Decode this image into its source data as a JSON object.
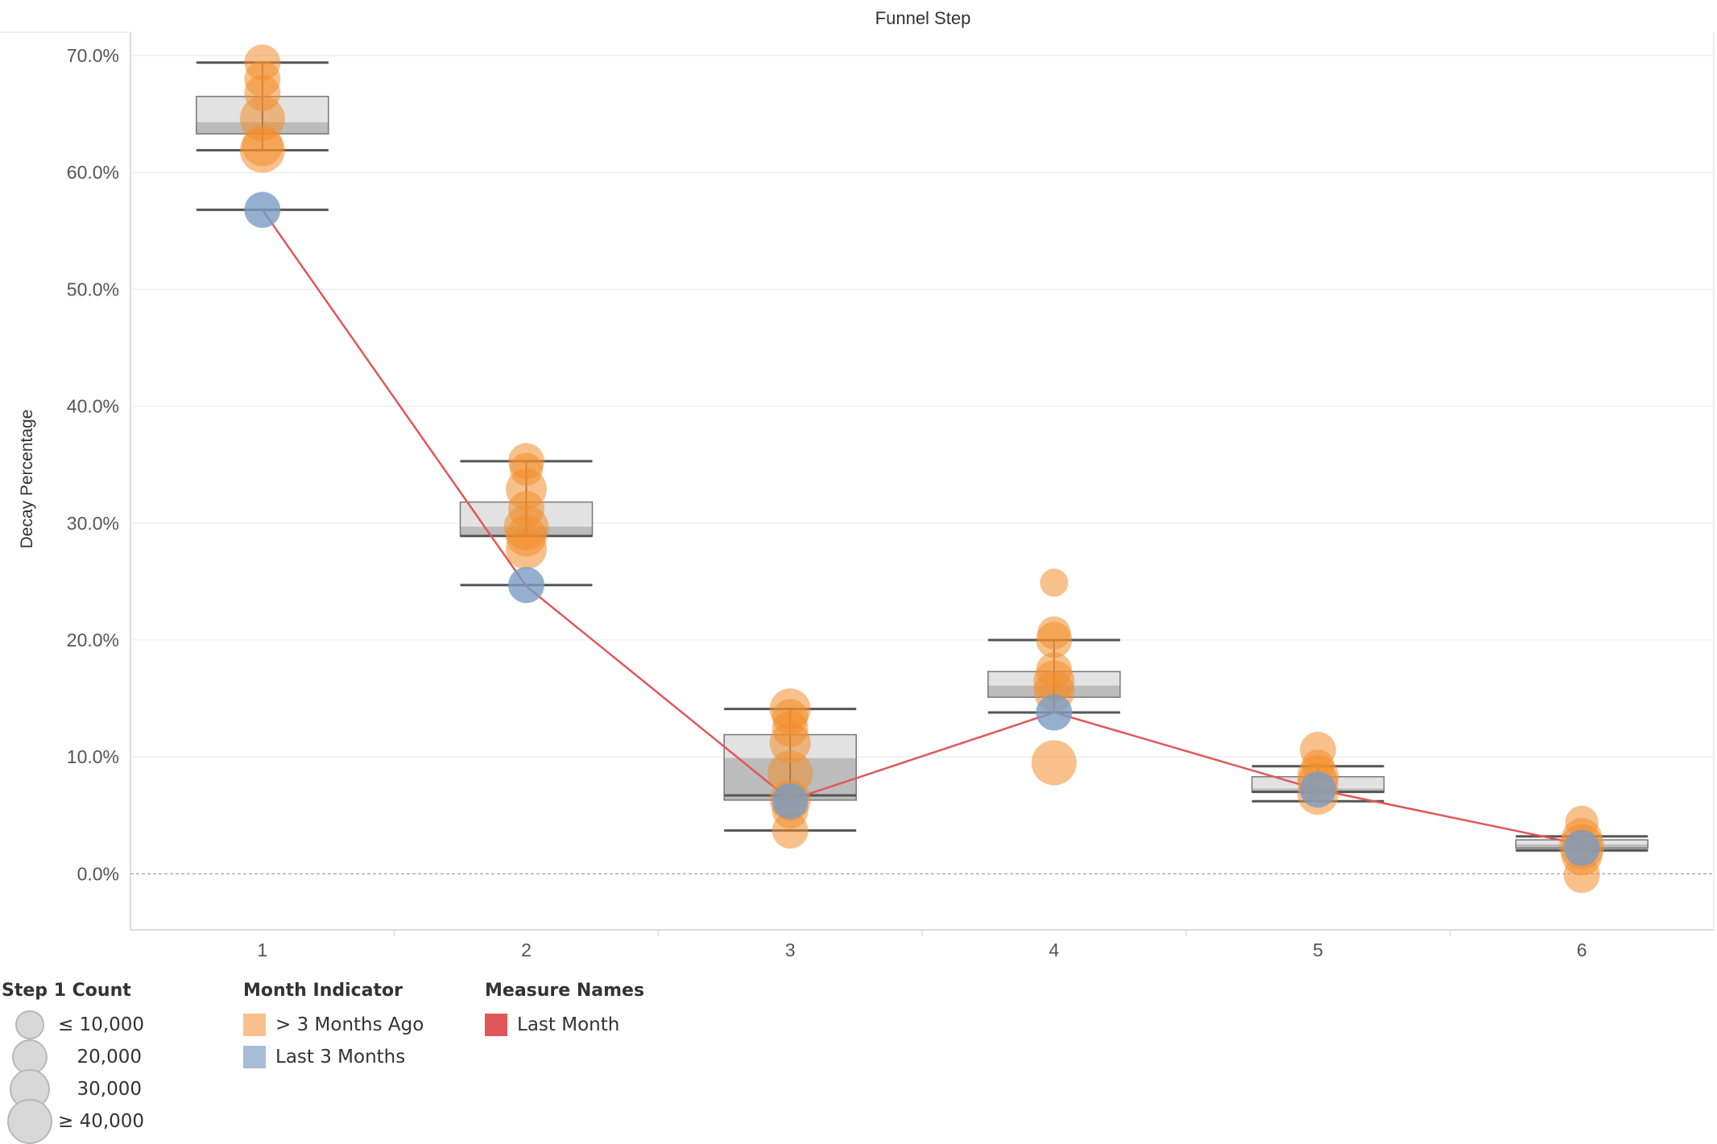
{
  "chart_data": {
    "type": "scatter",
    "title": "Funnel Step",
    "xlabel": "",
    "ylabel": "Decay Percentage",
    "categories": [
      "1",
      "2",
      "3",
      "4",
      "5",
      "6"
    ],
    "y_ticks": [
      "70.0%",
      "60.0%",
      "50.0%",
      "40.0%",
      "30.0%",
      "20.0%",
      "10.0%",
      "0.0%"
    ],
    "ylim": [
      -4.8,
      72
    ],
    "reference_line": 0,
    "grid": "horizontal",
    "colors": {
      "older": "#f28e2b",
      "recent": "#7b9cc2",
      "last_month_line": "#e15759",
      "box_upper": "#e2e2e2",
      "box_lower": "#bcbcbc",
      "whisker": "#555555"
    },
    "boxplots": [
      {
        "step": "1",
        "whisker_low": 56.8,
        "q1": 63.3,
        "median": 64.3,
        "q3": 66.5,
        "whisker_high": 69.4,
        "ci_low": 61.9
      },
      {
        "step": "2",
        "whisker_low": 24.7,
        "q1": 28.9,
        "median": 29.7,
        "q3": 31.8,
        "whisker_high": 35.3,
        "ci_low": 28.9
      },
      {
        "step": "3",
        "whisker_low": 3.7,
        "q1": 6.3,
        "median": 9.9,
        "q3": 11.9,
        "whisker_high": 14.1,
        "ci_low": 6.7
      },
      {
        "step": "4",
        "whisker_low": 13.8,
        "q1": 15.1,
        "median": 16.1,
        "q3": 17.3,
        "whisker_high": 20.0,
        "ci_low": 13.8
      },
      {
        "step": "5",
        "whisker_low": 6.2,
        "q1": 7.0,
        "median": 7.3,
        "q3": 8.3,
        "whisker_high": 9.2,
        "ci_low": 7.0
      },
      {
        "step": "6",
        "whisker_low": 2.0,
        "q1": 2.2,
        "median": 2.5,
        "q3": 2.9,
        "whisker_high": 3.2,
        "ci_low": 2.0
      }
    ],
    "series": [
      {
        "name": "> 3 Months Ago",
        "points": [
          {
            "x": "1",
            "y": 69.4,
            "count": 20000
          },
          {
            "x": "1",
            "y": 68.0,
            "count": 20000
          },
          {
            "x": "1",
            "y": 66.8,
            "count": 20000
          },
          {
            "x": "1",
            "y": 64.6,
            "count": 40000
          },
          {
            "x": "1",
            "y": 62.3,
            "count": 30000
          },
          {
            "x": "1",
            "y": 61.9,
            "count": 40000
          },
          {
            "x": "2",
            "y": 35.3,
            "count": 20000
          },
          {
            "x": "2",
            "y": 34.6,
            "count": 15000
          },
          {
            "x": "2",
            "y": 32.9,
            "count": 30000
          },
          {
            "x": "2",
            "y": 31.2,
            "count": 20000
          },
          {
            "x": "2",
            "y": 29.6,
            "count": 40000
          },
          {
            "x": "2",
            "y": 28.9,
            "count": 30000
          },
          {
            "x": "2",
            "y": 27.8,
            "count": 30000
          },
          {
            "x": "3",
            "y": 14.1,
            "count": 30000
          },
          {
            "x": "3",
            "y": 13.4,
            "count": 20000
          },
          {
            "x": "3",
            "y": 12.4,
            "count": 20000
          },
          {
            "x": "3",
            "y": 11.2,
            "count": 30000
          },
          {
            "x": "3",
            "y": 8.6,
            "count": 40000
          },
          {
            "x": "3",
            "y": 6.3,
            "count": 30000
          },
          {
            "x": "3",
            "y": 5.4,
            "count": 20000
          },
          {
            "x": "3",
            "y": 3.7,
            "count": 20000
          },
          {
            "x": "4",
            "y": 24.9,
            "count": 8000
          },
          {
            "x": "4",
            "y": 20.6,
            "count": 15000
          },
          {
            "x": "4",
            "y": 20.0,
            "count": 20000
          },
          {
            "x": "4",
            "y": 17.4,
            "count": 20000
          },
          {
            "x": "4",
            "y": 16.5,
            "count": 30000
          },
          {
            "x": "4",
            "y": 15.6,
            "count": 30000
          },
          {
            "x": "4",
            "y": 9.5,
            "count": 40000
          },
          {
            "x": "5",
            "y": 10.6,
            "count": 20000
          },
          {
            "x": "5",
            "y": 9.2,
            "count": 15000
          },
          {
            "x": "5",
            "y": 8.4,
            "count": 30000
          },
          {
            "x": "5",
            "y": 7.8,
            "count": 30000
          },
          {
            "x": "5",
            "y": 6.8,
            "count": 30000
          },
          {
            "x": "6",
            "y": 4.4,
            "count": 15000
          },
          {
            "x": "6",
            "y": 3.0,
            "count": 30000
          },
          {
            "x": "6",
            "y": 2.3,
            "count": 40000
          },
          {
            "x": "6",
            "y": 1.6,
            "count": 30000
          },
          {
            "x": "6",
            "y": -0.1,
            "count": 20000
          }
        ]
      },
      {
        "name": "Last 3 Months",
        "points": [
          {
            "x": "1",
            "y": 56.8,
            "count": 20000
          },
          {
            "x": "2",
            "y": 24.7,
            "count": 20000
          },
          {
            "x": "3",
            "y": 6.2,
            "count": 20000
          },
          {
            "x": "4",
            "y": 13.8,
            "count": 20000
          },
          {
            "x": "5",
            "y": 7.2,
            "count": 20000
          },
          {
            "x": "6",
            "y": 2.2,
            "count": 20000
          }
        ]
      }
    ],
    "line_series": {
      "name": "Last Month",
      "points": [
        {
          "x": "1",
          "y": 56.8
        },
        {
          "x": "2",
          "y": 24.6
        },
        {
          "x": "3",
          "y": 6.3
        },
        {
          "x": "4",
          "y": 13.8
        },
        {
          "x": "5",
          "y": 7.2
        },
        {
          "x": "6",
          "y": 2.5
        }
      ]
    }
  },
  "legends": {
    "size": {
      "title": "Step 1 Count",
      "items": [
        {
          "label": "≤ 10,000",
          "value": 10000
        },
        {
          "label": "20,000",
          "value": 20000
        },
        {
          "label": "30,000",
          "value": 30000
        },
        {
          "label": "≥ 40,000",
          "value": 40000
        }
      ]
    },
    "color": {
      "title": "Month Indicator",
      "items": [
        {
          "label": "> 3 Months Ago",
          "color": "#f9c08c"
        },
        {
          "label": "Last 3 Months",
          "color": "#a7bcd6"
        }
      ]
    },
    "measure": {
      "title": "Measure Names",
      "items": [
        {
          "label": "Last Month",
          "color": "#e15759"
        }
      ]
    }
  }
}
